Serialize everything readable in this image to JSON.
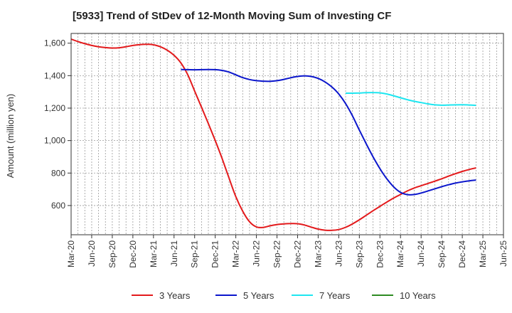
{
  "chart_data": {
    "type": "line",
    "title": "[5933]  Trend of StDev of 12-Month Moving Sum of Investing CF",
    "ylabel": "Amount (million yen)",
    "xlabel": "",
    "ylim": [
      420,
      1660
    ],
    "yticks": [
      600,
      800,
      1000,
      1200,
      1400,
      1600
    ],
    "ytick_labels": [
      "600",
      "800",
      "1,000",
      "1,200",
      "1,400",
      "1,600"
    ],
    "x_categories": [
      "Mar-20",
      "Jun-20",
      "Sep-20",
      "Dec-20",
      "Mar-21",
      "Jun-21",
      "Sep-21",
      "Dec-21",
      "Mar-22",
      "Jun-22",
      "Sep-22",
      "Dec-22",
      "Mar-23",
      "Jun-23",
      "Sep-23",
      "Dec-23",
      "Mar-24",
      "Jun-24",
      "Sep-24",
      "Dec-24",
      "Mar-25",
      "Jun-25"
    ],
    "grid": true,
    "legend_position": "bottom",
    "series": [
      {
        "name": "3 Years",
        "color": "#e31a1c",
        "points": [
          [
            "Mar-20",
            1625
          ],
          [
            "Apr-20",
            1610
          ],
          [
            "May-20",
            1597
          ],
          [
            "Jun-20",
            1586
          ],
          [
            "Jul-20",
            1578
          ],
          [
            "Aug-20",
            1573
          ],
          [
            "Sep-20",
            1570
          ],
          [
            "Oct-20",
            1572
          ],
          [
            "Nov-20",
            1578
          ],
          [
            "Dec-20",
            1586
          ],
          [
            "Jan-21",
            1591
          ],
          [
            "Feb-21",
            1593
          ],
          [
            "Mar-21",
            1590
          ],
          [
            "Apr-21",
            1578
          ],
          [
            "May-21",
            1557
          ],
          [
            "Jun-21",
            1525
          ],
          [
            "Jul-21",
            1478
          ],
          [
            "Aug-21",
            1405
          ],
          [
            "Sep-21",
            1305
          ],
          [
            "Oct-21",
            1205
          ],
          [
            "Nov-21",
            1105
          ],
          [
            "Dec-21",
            1000
          ],
          [
            "Jan-22",
            890
          ],
          [
            "Feb-22",
            770
          ],
          [
            "Mar-22",
            655
          ],
          [
            "Apr-22",
            565
          ],
          [
            "May-22",
            500
          ],
          [
            "Jun-22",
            468
          ],
          [
            "Jul-22",
            465
          ],
          [
            "Aug-22",
            475
          ],
          [
            "Sep-22",
            483
          ],
          [
            "Oct-22",
            487
          ],
          [
            "Nov-22",
            489
          ],
          [
            "Dec-22",
            488
          ],
          [
            "Jan-23",
            480
          ],
          [
            "Feb-23",
            467
          ],
          [
            "Mar-23",
            455
          ],
          [
            "Apr-23",
            448
          ],
          [
            "May-23",
            447
          ],
          [
            "Jun-23",
            452
          ],
          [
            "Jul-23",
            466
          ],
          [
            "Aug-23",
            487
          ],
          [
            "Sep-23",
            512
          ],
          [
            "Oct-23",
            540
          ],
          [
            "Nov-23",
            568
          ],
          [
            "Dec-23",
            595
          ],
          [
            "Jan-24",
            621
          ],
          [
            "Feb-24",
            646
          ],
          [
            "Mar-24",
            668
          ],
          [
            "Apr-24",
            690
          ],
          [
            "May-24",
            708
          ],
          [
            "Jun-24",
            722
          ],
          [
            "Jul-24",
            736
          ],
          [
            "Aug-24",
            750
          ],
          [
            "Sep-24",
            765
          ],
          [
            "Oct-24",
            781
          ],
          [
            "Nov-24",
            796
          ],
          [
            "Dec-24",
            810
          ],
          [
            "Jan-25",
            822
          ],
          [
            "Feb-25",
            832
          ]
        ]
      },
      {
        "name": "5 Years",
        "color": "#0b16cc",
        "points": [
          [
            "Jul-21",
            1438
          ],
          [
            "Aug-21",
            1437
          ],
          [
            "Sep-21",
            1436
          ],
          [
            "Oct-21",
            1437
          ],
          [
            "Nov-21",
            1438
          ],
          [
            "Dec-21",
            1437
          ],
          [
            "Jan-22",
            1432
          ],
          [
            "Feb-22",
            1422
          ],
          [
            "Mar-22",
            1405
          ],
          [
            "Apr-22",
            1388
          ],
          [
            "May-22",
            1376
          ],
          [
            "Jun-22",
            1369
          ],
          [
            "Jul-22",
            1366
          ],
          [
            "Aug-22",
            1365
          ],
          [
            "Sep-22",
            1369
          ],
          [
            "Oct-22",
            1377
          ],
          [
            "Nov-22",
            1387
          ],
          [
            "Dec-22",
            1395
          ],
          [
            "Jan-23",
            1399
          ],
          [
            "Feb-23",
            1395
          ],
          [
            "Mar-23",
            1383
          ],
          [
            "Apr-23",
            1361
          ],
          [
            "May-23",
            1330
          ],
          [
            "Jun-23",
            1287
          ],
          [
            "Jul-23",
            1228
          ],
          [
            "Aug-23",
            1152
          ],
          [
            "Sep-23",
            1065
          ],
          [
            "Oct-23",
            980
          ],
          [
            "Nov-23",
            900
          ],
          [
            "Dec-23",
            827
          ],
          [
            "Jan-24",
            765
          ],
          [
            "Feb-24",
            715
          ],
          [
            "Mar-24",
            681
          ],
          [
            "Apr-24",
            667
          ],
          [
            "May-24",
            668
          ],
          [
            "Jun-24",
            677
          ],
          [
            "Jul-24",
            690
          ],
          [
            "Aug-24",
            703
          ],
          [
            "Sep-24",
            716
          ],
          [
            "Oct-24",
            728
          ],
          [
            "Nov-24",
            738
          ],
          [
            "Dec-24",
            746
          ],
          [
            "Jan-25",
            752
          ],
          [
            "Feb-25",
            757
          ]
        ]
      },
      {
        "name": "7 Years",
        "color": "#1ee6f0",
        "points": [
          [
            "Jul-23",
            1292
          ],
          [
            "Aug-23",
            1292
          ],
          [
            "Sep-23",
            1293
          ],
          [
            "Oct-23",
            1295
          ],
          [
            "Nov-23",
            1296
          ],
          [
            "Dec-23",
            1294
          ],
          [
            "Jan-24",
            1287
          ],
          [
            "Feb-24",
            1276
          ],
          [
            "Mar-24",
            1264
          ],
          [
            "Apr-24",
            1252
          ],
          [
            "May-24",
            1242
          ],
          [
            "Jun-24",
            1234
          ],
          [
            "Jul-24",
            1226
          ],
          [
            "Aug-24",
            1220
          ],
          [
            "Sep-24",
            1218
          ],
          [
            "Oct-24",
            1219
          ],
          [
            "Nov-24",
            1220
          ],
          [
            "Dec-24",
            1221
          ],
          [
            "Jan-25",
            1219
          ],
          [
            "Feb-25",
            1217
          ]
        ]
      },
      {
        "name": "10 Years",
        "color": "#2e8b22",
        "points": []
      }
    ]
  }
}
